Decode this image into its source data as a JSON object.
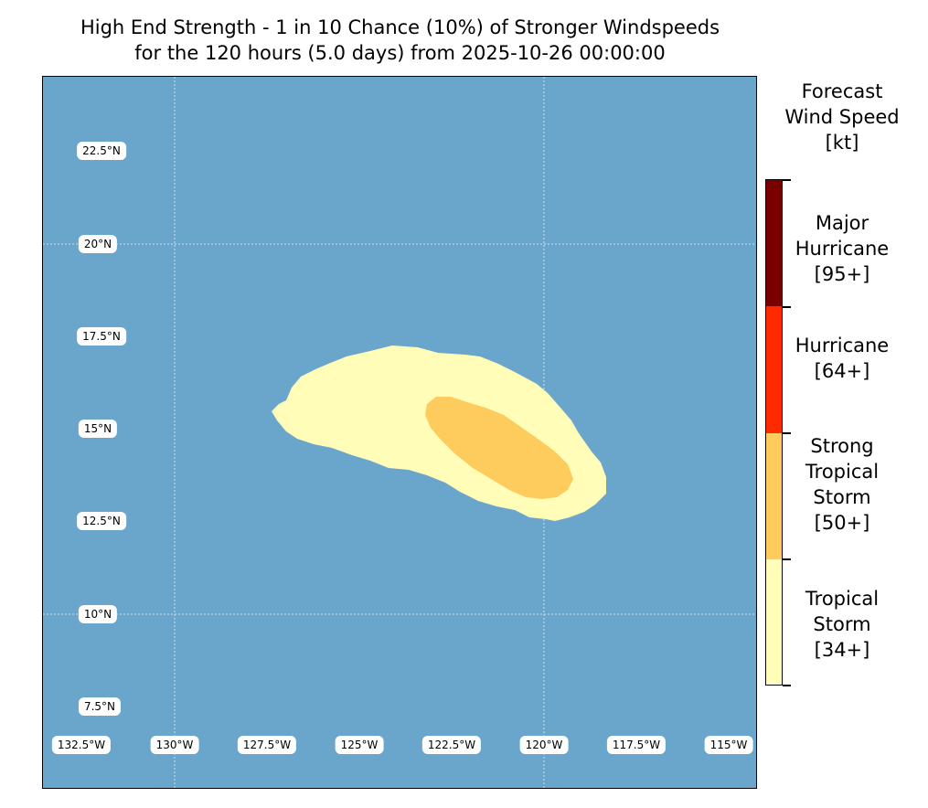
{
  "title": {
    "line1": "High End Strength - 1 in 10 Chance (10%) of Stronger Windspeeds",
    "line2": "for the 120 hours (5.0 days) from 2025-10-26 00:00:00"
  },
  "map": {
    "ocean_color": "#6aa6cc",
    "lat_labels": [
      "22.5°N",
      "20°N",
      "17.5°N",
      "15°N",
      "12.5°N",
      "10°N",
      "7.5°N"
    ],
    "lon_labels": [
      "132.5°W",
      "130°W",
      "127.5°W",
      "125°W",
      "122.5°W",
      "120°W",
      "117.5°W",
      "115°W"
    ],
    "regions": [
      {
        "category": "Tropical Storm",
        "color": "#fffdb8"
      },
      {
        "category": "Strong Tropical Storm",
        "color": "#fecc5c"
      }
    ]
  },
  "colorbar": {
    "title": "Forecast Wind Speed [kt]",
    "title_lines": [
      "Forecast",
      "Wind Speed",
      "[kt]"
    ],
    "categories": [
      {
        "lines": [
          "Major",
          "Hurricane",
          "[95+]"
        ],
        "color": "#7a0000"
      },
      {
        "lines": [
          "Hurricane",
          "[64+]"
        ],
        "color": "#ff2a00"
      },
      {
        "lines": [
          "Strong",
          "Tropical",
          "Storm",
          "[50+]"
        ],
        "color": "#fecc5c"
      },
      {
        "lines": [
          "Tropical",
          "Storm",
          "[34+]"
        ],
        "color": "#fffdb8"
      }
    ]
  }
}
